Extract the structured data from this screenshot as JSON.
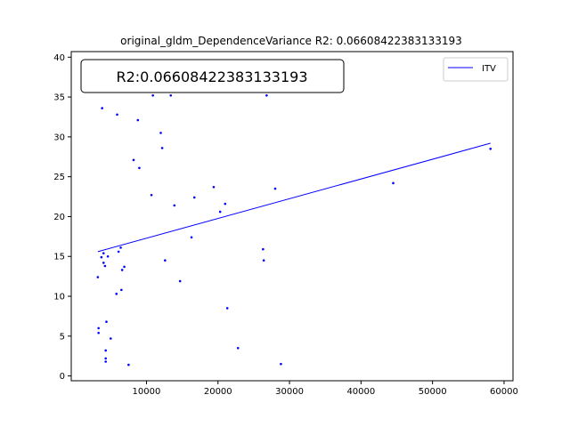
{
  "chart_data": {
    "type": "scatter",
    "title": "original_gldm_DependenceVariance R2: 0.06608422383133193",
    "annotation": "R2:0.06608422383133193",
    "xlabel": "",
    "ylabel": "",
    "xlim": [
      -517,
      61250
    ],
    "ylim": [
      -0.6,
      40.7
    ],
    "x_ticks": [
      10000,
      20000,
      30000,
      40000,
      50000,
      60000
    ],
    "x_tick_labels": [
      "10000",
      "20000",
      "30000",
      "40000",
      "50000",
      "60000"
    ],
    "y_ticks": [
      0,
      5,
      10,
      15,
      20,
      25,
      30,
      35,
      40
    ],
    "y_tick_labels": [
      "0",
      "5",
      "10",
      "15",
      "20",
      "25",
      "30",
      "35",
      "40"
    ],
    "grid": false,
    "legend_position": "top-right",
    "colors": {
      "points": "#0000ff",
      "line": "#0000ff"
    },
    "series": [
      {
        "kind": "points",
        "points": [
          [
            3200,
            12.4
          ],
          [
            3300,
            6.0
          ],
          [
            3300,
            5.4
          ],
          [
            3700,
            14.9
          ],
          [
            3800,
            33.6
          ],
          [
            4000,
            14.2
          ],
          [
            4000,
            15.4
          ],
          [
            4200,
            13.8
          ],
          [
            4300,
            1.8
          ],
          [
            4300,
            2.2
          ],
          [
            4300,
            3.2
          ],
          [
            4400,
            6.8
          ],
          [
            4600,
            15.0
          ],
          [
            5000,
            4.7
          ],
          [
            5800,
            10.3
          ],
          [
            5900,
            32.8
          ],
          [
            6100,
            15.6
          ],
          [
            6400,
            16.1
          ],
          [
            6500,
            10.8
          ],
          [
            6600,
            13.3
          ],
          [
            6900,
            13.7
          ],
          [
            7500,
            1.4
          ],
          [
            8200,
            27.1
          ],
          [
            8800,
            32.1
          ],
          [
            9000,
            26.1
          ],
          [
            10700,
            22.7
          ],
          [
            10900,
            35.2
          ],
          [
            12000,
            30.5
          ],
          [
            12200,
            28.6
          ],
          [
            12600,
            14.5
          ],
          [
            13400,
            35.2
          ],
          [
            13900,
            21.4
          ],
          [
            14700,
            11.9
          ],
          [
            16300,
            17.4
          ],
          [
            16700,
            22.4
          ],
          [
            19400,
            23.7
          ],
          [
            20300,
            20.6
          ],
          [
            21000,
            21.6
          ],
          [
            21300,
            8.5
          ],
          [
            22800,
            3.5
          ],
          [
            26300,
            15.9
          ],
          [
            26400,
            14.5
          ],
          [
            26800,
            35.2
          ],
          [
            28000,
            23.5
          ],
          [
            28800,
            1.5
          ],
          [
            44500,
            24.2
          ],
          [
            58100,
            28.5
          ]
        ]
      },
      {
        "kind": "line",
        "name": "ITV",
        "x": [
          3200,
          58100
        ],
        "y": [
          15.6,
          29.2
        ]
      }
    ]
  }
}
